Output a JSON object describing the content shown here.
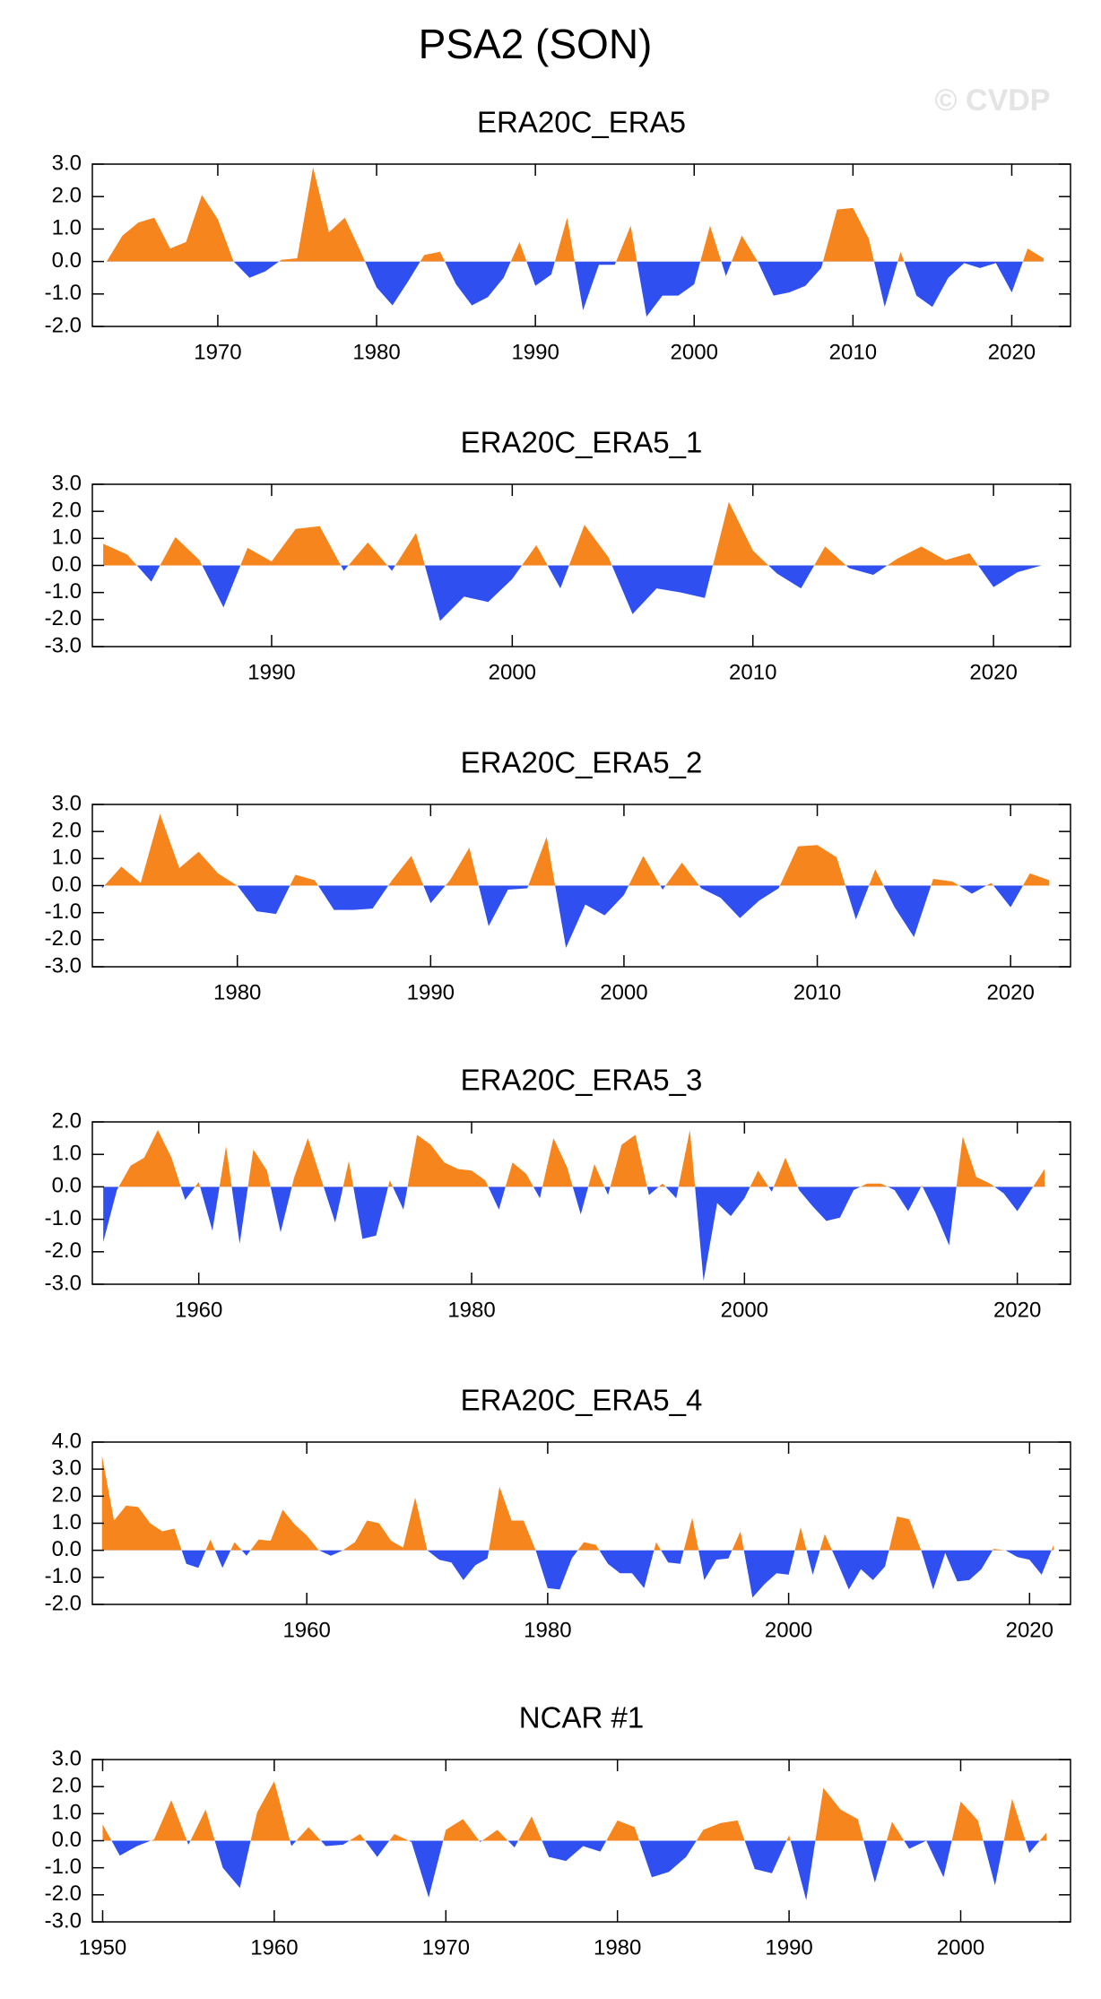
{
  "title": "PSA2 (SON)",
  "watermark": "© CVDP",
  "chart_data": [
    {
      "type": "area",
      "title": "ERA20C_ERA5",
      "positive_color": "#f7851e",
      "negative_color": "#2f4ff0",
      "x": [
        1963,
        1964,
        1965,
        1966,
        1967,
        1968,
        1969,
        1970,
        1971,
        1972,
        1973,
        1974,
        1975,
        1976,
        1977,
        1978,
        1979,
        1980,
        1981,
        1982,
        1983,
        1984,
        1985,
        1986,
        1987,
        1988,
        1989,
        1990,
        1991,
        1992,
        1993,
        1994,
        1995,
        1996,
        1997,
        1998,
        1999,
        2000,
        2001,
        2002,
        2003,
        2004,
        2005,
        2006,
        2007,
        2008,
        2009,
        2010,
        2011,
        2012,
        2013,
        2014,
        2015,
        2016,
        2017,
        2018,
        2019,
        2020,
        2021,
        2022
      ],
      "values": [
        0.0,
        0.8,
        1.2,
        1.35,
        0.4,
        0.6,
        2.05,
        1.3,
        0.0,
        -0.5,
        -0.3,
        0.05,
        0.1,
        2.9,
        0.9,
        1.35,
        0.3,
        -0.8,
        -1.35,
        -0.6,
        0.2,
        0.3,
        -0.7,
        -1.35,
        -1.1,
        -0.5,
        0.6,
        -0.75,
        -0.4,
        1.35,
        -1.5,
        -0.1,
        -0.1,
        1.1,
        -1.7,
        -1.05,
        -1.05,
        -0.7,
        1.1,
        -0.45,
        0.8,
        0.0,
        -1.05,
        -0.95,
        -0.75,
        -0.2,
        1.6,
        1.65,
        0.7,
        -1.4,
        0.3,
        -1.05,
        -1.4,
        -0.5,
        -0.05,
        -0.2,
        -0.05,
        -0.95,
        0.4,
        0.1
      ],
      "xlim": [
        1962.1,
        2023.7
      ],
      "xticks": [
        1970,
        1980,
        1990,
        2000,
        2010,
        2020
      ],
      "ylim": [
        -2,
        3
      ],
      "yticks": [
        {
          "value": -2,
          "label": "-2.0"
        },
        {
          "value": -1,
          "label": "-1.0"
        },
        {
          "value": 0,
          "label": "0.0"
        },
        {
          "value": 1,
          "label": "1.0"
        },
        {
          "value": 2,
          "label": "2.0"
        },
        {
          "value": 3,
          "label": "3.0"
        }
      ]
    },
    {
      "type": "area",
      "title": "ERA20C_ERA5_1",
      "positive_color": "#f7851e",
      "negative_color": "#2f4ff0",
      "x": [
        1983,
        1984,
        1985,
        1986,
        1987,
        1988,
        1989,
        1990,
        1991,
        1992,
        1993,
        1994,
        1995,
        1996,
        1997,
        1998,
        1999,
        2000,
        2001,
        2002,
        2003,
        2004,
        2005,
        2006,
        2007,
        2008,
        2009,
        2010,
        2011,
        2012,
        2013,
        2014,
        2015,
        2016,
        2017,
        2018,
        2019,
        2020,
        2021,
        2022
      ],
      "values": [
        0.8,
        0.4,
        -0.6,
        1.05,
        0.2,
        -1.55,
        0.65,
        0.15,
        1.35,
        1.45,
        -0.2,
        0.85,
        -0.2,
        1.2,
        -2.05,
        -1.15,
        -1.35,
        -0.5,
        0.75,
        -0.85,
        1.5,
        0.3,
        -1.8,
        -0.85,
        -1.0,
        -1.2,
        2.35,
        0.55,
        -0.3,
        -0.85,
        0.7,
        -0.1,
        -0.35,
        0.25,
        0.7,
        0.2,
        0.45,
        -0.8,
        -0.25,
        0.0
      ],
      "xlim": [
        1982.55,
        2023.2
      ],
      "xticks": [
        1990,
        2000,
        2010,
        2020
      ],
      "ylim": [
        -3,
        3
      ],
      "yticks": [
        {
          "value": -3,
          "label": "-3.0"
        },
        {
          "value": -2,
          "label": "-2.0"
        },
        {
          "value": -1,
          "label": "-1.0"
        },
        {
          "value": 0,
          "label": "0.0"
        },
        {
          "value": 1,
          "label": "1.0"
        },
        {
          "value": 2,
          "label": "2.0"
        },
        {
          "value": 3,
          "label": "3.0"
        }
      ]
    },
    {
      "type": "area",
      "title": "ERA20C_ERA5_2",
      "positive_color": "#f7851e",
      "negative_color": "#2f4ff0",
      "x": [
        1973,
        1974,
        1975,
        1976,
        1977,
        1978,
        1979,
        1980,
        1981,
        1982,
        1983,
        1984,
        1985,
        1986,
        1987,
        1988,
        1989,
        1990,
        1991,
        1992,
        1993,
        1994,
        1995,
        1996,
        1997,
        1998,
        1999,
        2000,
        2001,
        2002,
        2003,
        2004,
        2005,
        2006,
        2007,
        2008,
        2009,
        2010,
        2011,
        2012,
        2013,
        2014,
        2015,
        2016,
        2017,
        2018,
        2019,
        2020,
        2021,
        2022
      ],
      "values": [
        -0.1,
        0.7,
        0.1,
        2.65,
        0.65,
        1.25,
        0.45,
        0.0,
        -0.95,
        -1.05,
        0.4,
        0.2,
        -0.9,
        -0.9,
        -0.85,
        0.2,
        1.1,
        -0.65,
        0.2,
        1.4,
        -1.5,
        -0.15,
        -0.1,
        1.8,
        -2.3,
        -0.7,
        -1.1,
        -0.35,
        1.1,
        -0.15,
        0.85,
        -0.1,
        -0.45,
        -1.2,
        -0.55,
        -0.1,
        1.45,
        1.5,
        1.05,
        -1.25,
        0.6,
        -0.8,
        -1.9,
        0.25,
        0.15,
        -0.3,
        0.1,
        -0.8,
        0.45,
        0.2
      ],
      "xlim": [
        1972.5,
        2023.1
      ],
      "xticks": [
        1980,
        1990,
        2000,
        2010,
        2020
      ],
      "ylim": [
        -3,
        3
      ],
      "yticks": [
        {
          "value": -3,
          "label": "-3.0"
        },
        {
          "value": -2,
          "label": "-2.0"
        },
        {
          "value": -1,
          "label": "-1.0"
        },
        {
          "value": 0,
          "label": "0.0"
        },
        {
          "value": 1,
          "label": "1.0"
        },
        {
          "value": 2,
          "label": "2.0"
        },
        {
          "value": 3,
          "label": "3.0"
        }
      ]
    },
    {
      "type": "area",
      "title": "ERA20C_ERA5_3",
      "positive_color": "#f7851e",
      "negative_color": "#2f4ff0",
      "x": [
        1953,
        1954,
        1955,
        1956,
        1957,
        1958,
        1959,
        1960,
        1961,
        1962,
        1963,
        1964,
        1965,
        1966,
        1967,
        1968,
        1969,
        1970,
        1971,
        1972,
        1973,
        1974,
        1975,
        1976,
        1977,
        1978,
        1979,
        1980,
        1981,
        1982,
        1983,
        1984,
        1985,
        1986,
        1987,
        1988,
        1989,
        1990,
        1991,
        1992,
        1993,
        1994,
        1995,
        1996,
        1997,
        1998,
        1999,
        2000,
        2001,
        2002,
        2003,
        2004,
        2005,
        2006,
        2007,
        2008,
        2009,
        2010,
        2011,
        2012,
        2013,
        2014,
        2015,
        2016,
        2017,
        2018,
        2019,
        2020,
        2021,
        2022
      ],
      "values": [
        -1.7,
        -0.1,
        0.65,
        0.9,
        1.75,
        0.9,
        -0.4,
        0.15,
        -1.35,
        1.25,
        -1.75,
        1.15,
        0.5,
        -1.4,
        0.3,
        1.5,
        0.2,
        -1.1,
        0.8,
        -1.6,
        -1.5,
        0.2,
        -0.7,
        1.6,
        1.3,
        0.75,
        0.55,
        0.5,
        0.2,
        -0.7,
        0.75,
        0.4,
        -0.35,
        1.5,
        0.6,
        -0.85,
        0.7,
        -0.25,
        1.3,
        1.6,
        -0.25,
        0.1,
        -0.35,
        1.75,
        -2.9,
        -0.5,
        -0.9,
        -0.35,
        0.5,
        -0.15,
        0.9,
        -0.1,
        -0.6,
        -1.05,
        -0.95,
        -0.1,
        0.1,
        0.1,
        -0.1,
        -0.75,
        0.05,
        -0.8,
        -1.8,
        1.55,
        0.3,
        0.1,
        -0.2,
        -0.75,
        -0.1,
        0.55
      ],
      "xlim": [
        1952.2,
        2023.9
      ],
      "xticks": [
        1960,
        1980,
        2000,
        2020
      ],
      "ylim": [
        -3,
        2
      ],
      "yticks": [
        {
          "value": -3,
          "label": "-3.0"
        },
        {
          "value": -2,
          "label": "-2.0"
        },
        {
          "value": -1,
          "label": "-1.0"
        },
        {
          "value": 0,
          "label": "0.0"
        },
        {
          "value": 1,
          "label": "1.0"
        },
        {
          "value": 2,
          "label": "2.0"
        }
      ]
    },
    {
      "type": "area",
      "title": "ERA20C_ERA5_4",
      "positive_color": "#f7851e",
      "negative_color": "#2f4ff0",
      "x": [
        1943,
        1944,
        1945,
        1946,
        1947,
        1948,
        1949,
        1950,
        1951,
        1952,
        1953,
        1954,
        1955,
        1956,
        1957,
        1958,
        1959,
        1960,
        1961,
        1962,
        1963,
        1964,
        1965,
        1966,
        1967,
        1968,
        1969,
        1970,
        1971,
        1972,
        1973,
        1974,
        1975,
        1976,
        1977,
        1978,
        1979,
        1980,
        1981,
        1982,
        1983,
        1984,
        1985,
        1986,
        1987,
        1988,
        1989,
        1990,
        1991,
        1992,
        1993,
        1994,
        1995,
        1996,
        1997,
        1998,
        1999,
        2000,
        2001,
        2002,
        2003,
        2004,
        2005,
        2006,
        2007,
        2008,
        2009,
        2010,
        2011,
        2012,
        2013,
        2014,
        2015,
        2016,
        2017,
        2018,
        2019,
        2020,
        2021,
        2022
      ],
      "values": [
        3.5,
        1.1,
        1.65,
        1.6,
        1.0,
        0.7,
        0.8,
        -0.5,
        -0.65,
        0.4,
        -0.65,
        0.3,
        -0.2,
        0.4,
        0.35,
        1.5,
        0.95,
        0.55,
        0.0,
        -0.2,
        0.0,
        0.3,
        1.1,
        1.0,
        0.35,
        0.1,
        1.95,
        0.0,
        -0.35,
        -0.45,
        -1.1,
        -0.55,
        -0.3,
        2.35,
        1.1,
        1.1,
        0.0,
        -1.4,
        -1.45,
        -0.3,
        0.3,
        0.2,
        -0.5,
        -0.85,
        -0.85,
        -1.4,
        0.3,
        -0.45,
        -0.5,
        1.2,
        -1.1,
        -0.35,
        -0.3,
        0.7,
        -1.75,
        -1.25,
        -0.85,
        -0.9,
        0.85,
        -0.9,
        0.6,
        -0.4,
        -1.45,
        -0.7,
        -1.1,
        -0.6,
        1.25,
        1.15,
        0.0,
        -1.45,
        -0.1,
        -1.15,
        -1.1,
        -0.7,
        0.05,
        0.0,
        -0.25,
        -0.35,
        -0.9,
        0.2
      ],
      "xlim": [
        1942.2,
        2023.4
      ],
      "xticks": [
        1960,
        1980,
        2000,
        2020
      ],
      "ylim": [
        -2,
        4
      ],
      "yticks": [
        {
          "value": -2,
          "label": "-2.0"
        },
        {
          "value": -1,
          "label": "-1.0"
        },
        {
          "value": 0,
          "label": "0.0"
        },
        {
          "value": 1,
          "label": "1.0"
        },
        {
          "value": 2,
          "label": "2.0"
        },
        {
          "value": 3,
          "label": "3.0"
        },
        {
          "value": 4,
          "label": "4.0"
        }
      ]
    },
    {
      "type": "area",
      "title": "NCAR #1",
      "positive_color": "#f7851e",
      "negative_color": "#2f4ff0",
      "x": [
        1950,
        1951,
        1952,
        1953,
        1954,
        1955,
        1956,
        1957,
        1958,
        1959,
        1960,
        1961,
        1962,
        1963,
        1964,
        1965,
        1966,
        1967,
        1968,
        1969,
        1970,
        1971,
        1972,
        1973,
        1974,
        1975,
        1976,
        1977,
        1978,
        1979,
        1980,
        1981,
        1982,
        1983,
        1984,
        1985,
        1986,
        1987,
        1988,
        1989,
        1990,
        1991,
        1992,
        1993,
        1994,
        1995,
        1996,
        1997,
        1998,
        1999,
        2000,
        2001,
        2002,
        2003,
        2004,
        2005
      ],
      "values": [
        0.6,
        -0.55,
        -0.2,
        0.05,
        1.5,
        -0.15,
        1.15,
        -1.0,
        -1.75,
        1.05,
        2.2,
        -0.2,
        0.5,
        -0.2,
        -0.15,
        0.25,
        -0.6,
        0.25,
        -0.05,
        -2.1,
        0.4,
        0.8,
        -0.05,
        0.4,
        -0.25,
        0.9,
        -0.6,
        -0.75,
        -0.2,
        -0.4,
        0.75,
        0.5,
        -1.35,
        -1.15,
        -0.6,
        0.4,
        0.65,
        0.75,
        -1.05,
        -1.2,
        0.2,
        -2.2,
        1.95,
        1.15,
        0.8,
        -1.55,
        0.7,
        -0.3,
        0.0,
        -1.35,
        1.45,
        0.75,
        -1.65,
        1.55,
        -0.45,
        0.3
      ],
      "xlim": [
        1949.4,
        2006.4
      ],
      "xticks": [
        1950,
        1960,
        1970,
        1980,
        1990,
        2000
      ],
      "ylim": [
        -3,
        3
      ],
      "yticks": [
        {
          "value": -3,
          "label": "-3.0"
        },
        {
          "value": -2,
          "label": "-2.0"
        },
        {
          "value": -1,
          "label": "-1.0"
        },
        {
          "value": 0,
          "label": "0.0"
        },
        {
          "value": 1,
          "label": "1.0"
        },
        {
          "value": 2,
          "label": "2.0"
        },
        {
          "value": 3,
          "label": "3.0"
        }
      ]
    }
  ]
}
